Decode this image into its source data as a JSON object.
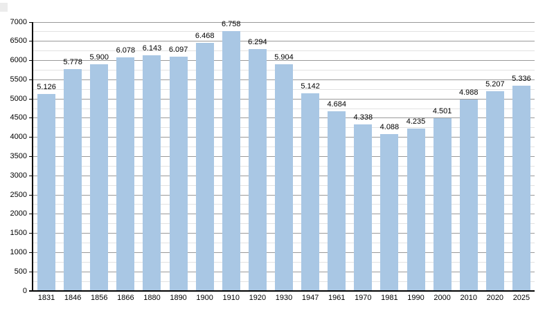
{
  "chart_data": {
    "type": "bar",
    "title": "",
    "xlabel": "",
    "ylabel": "",
    "categories": [
      "1831",
      "1846",
      "1856",
      "1866",
      "1880",
      "1890",
      "1900",
      "1910",
      "1920",
      "1930",
      "1947",
      "1961",
      "1970",
      "1981",
      "1990",
      "2000",
      "2010",
      "2020",
      "2025"
    ],
    "values": [
      5126,
      5778,
      5900,
      6078,
      6143,
      6097,
      6468,
      6758,
      6294,
      5904,
      5142,
      4684,
      4338,
      4088,
      4235,
      4501,
      4988,
      5207,
      5336
    ],
    "value_labels": [
      "5.126",
      "5.778",
      "5.900",
      "6.078",
      "6.143",
      "6.097",
      "6.468",
      "6.758",
      "6.294",
      "5.904",
      "5.142",
      "4.684",
      "4.338",
      "4.088",
      "4.235",
      "4.501",
      "4.988",
      "5.207",
      "5.336"
    ],
    "ylim": [
      0,
      7000
    ],
    "y_tick_labels": [
      "0",
      "500",
      "1000",
      "1500",
      "2000",
      "2500",
      "3000",
      "3500",
      "4000",
      "4500",
      "5000",
      "5500",
      "6000",
      "6500",
      "7000"
    ],
    "y_tick_step": 500,
    "y_minor_grid_step": 250,
    "grid": true,
    "legend_position": "none",
    "bar_color": "#a9c7e4",
    "major_grid_color": "#999999",
    "minor_grid_color": "#e2e2e2",
    "axis_color": "#000000",
    "background_color": "#ffffff"
  }
}
